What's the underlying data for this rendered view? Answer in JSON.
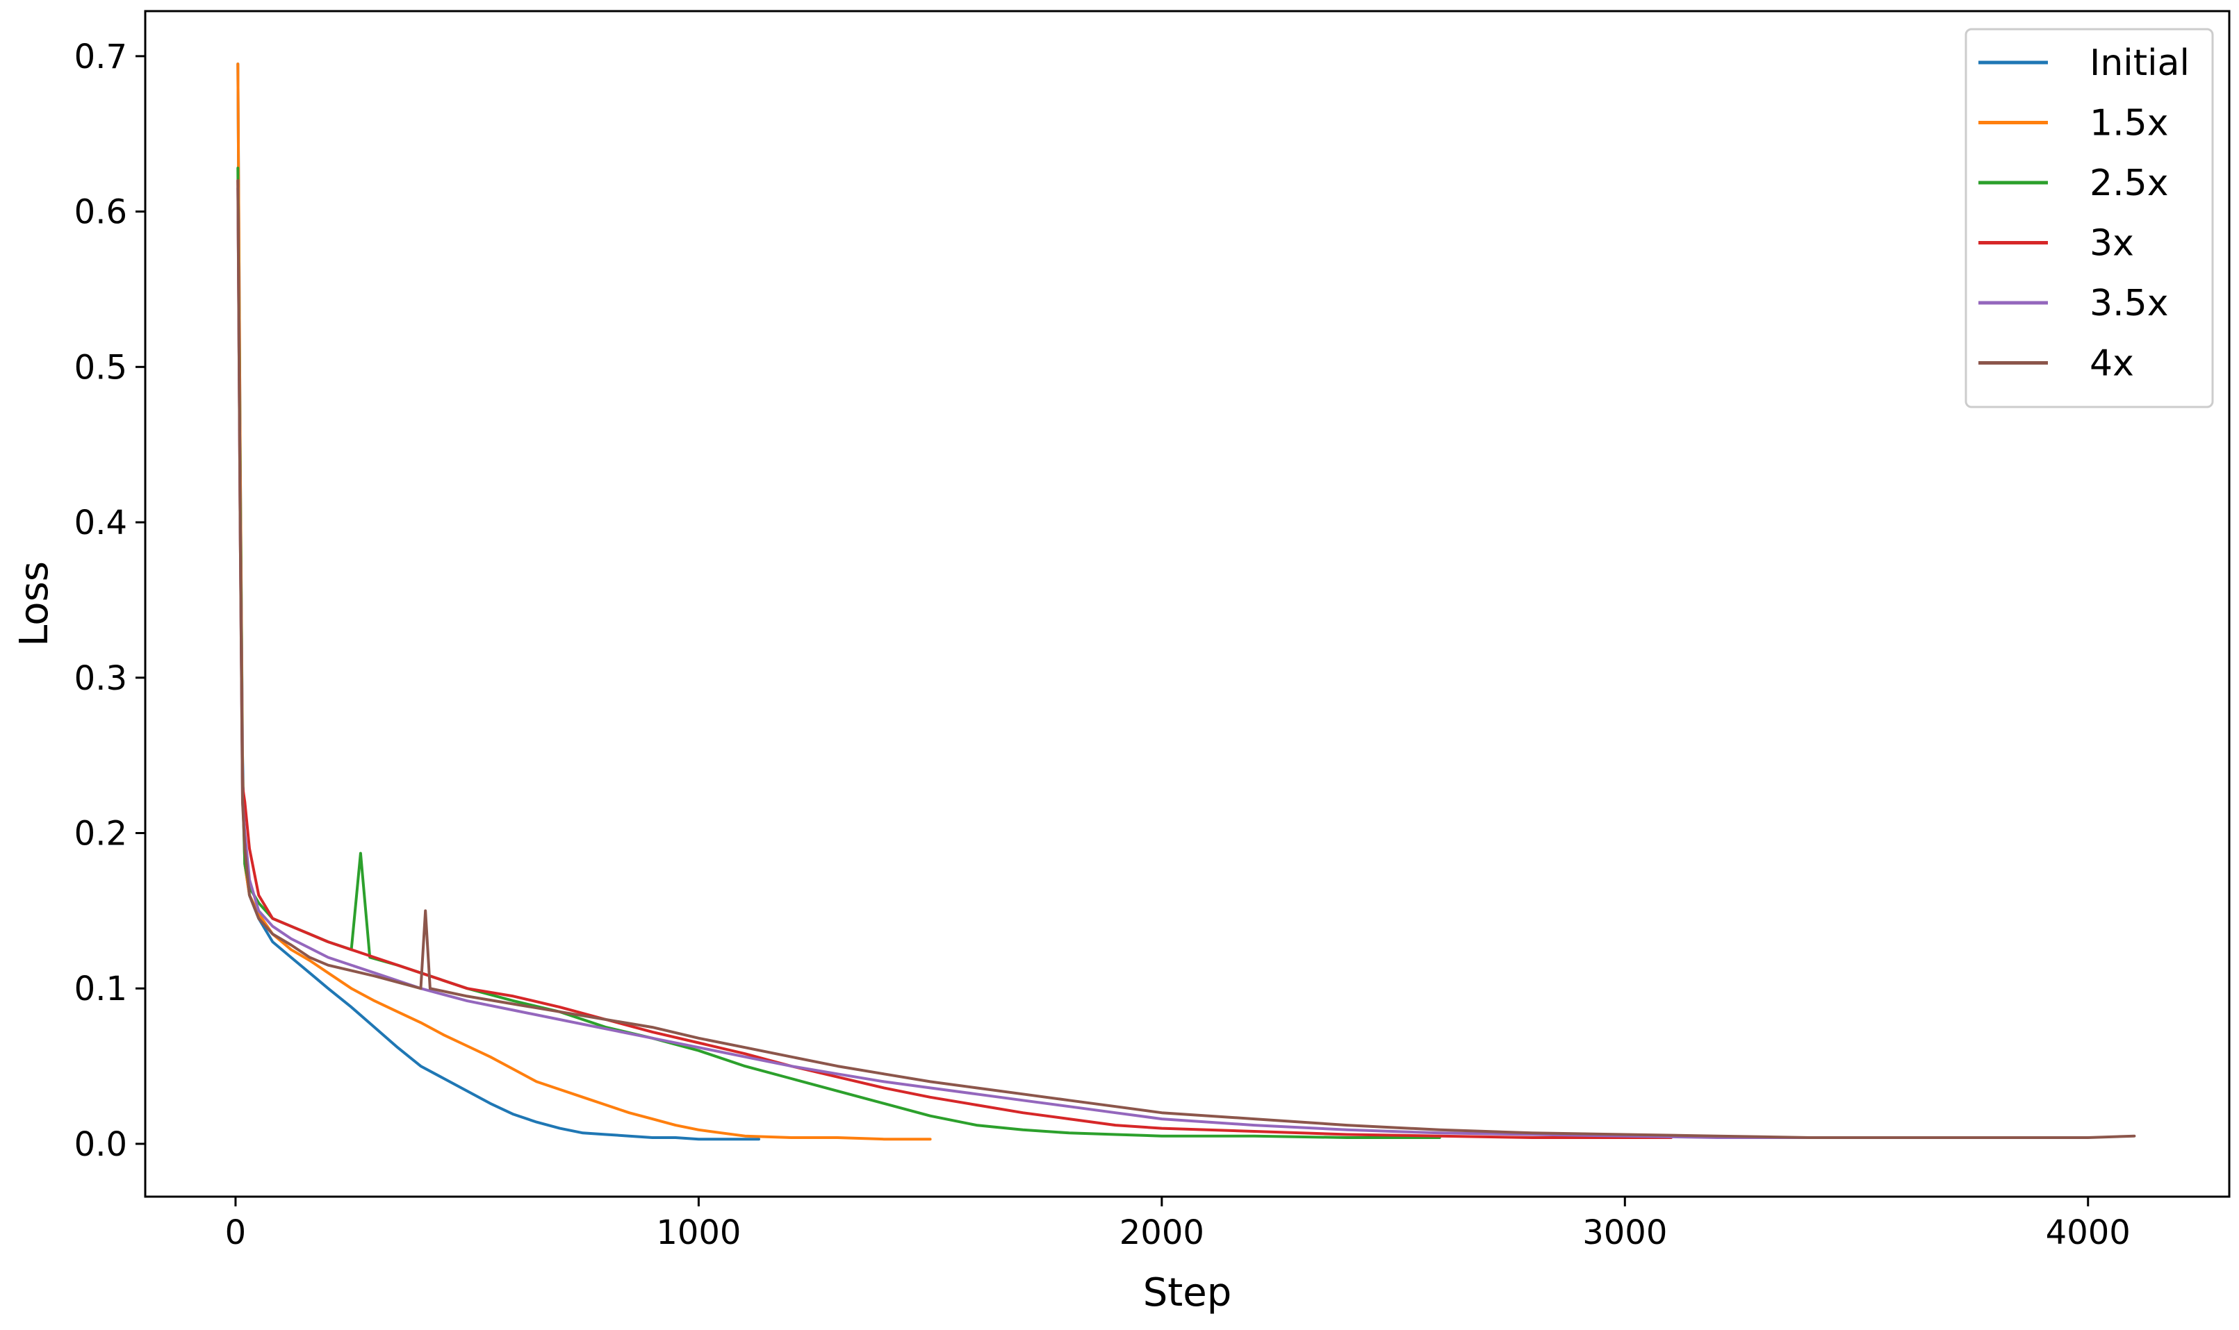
{
  "chart_data": {
    "type": "line",
    "title": "",
    "xlabel": "Step",
    "ylabel": "Loss",
    "xlim": [
      -195,
      4305
    ],
    "ylim": [
      -0.034,
      0.729
    ],
    "x_ticks": [
      0,
      1000,
      2000,
      3000,
      4000
    ],
    "x_tick_labels": [
      "0",
      "1000",
      "2000",
      "3000",
      "4000"
    ],
    "y_ticks": [
      0.0,
      0.1,
      0.2,
      0.3,
      0.4,
      0.5,
      0.6,
      0.7
    ],
    "y_tick_labels": [
      "0.0",
      "0.1",
      "0.2",
      "0.3",
      "0.4",
      "0.5",
      "0.6",
      "0.7"
    ],
    "grid": false,
    "legend_position": "top-right",
    "series": [
      {
        "name": "Initial",
        "color": "#1f77b4",
        "x": [
          5,
          10,
          15,
          20,
          30,
          50,
          80,
          120,
          160,
          200,
          250,
          300,
          350,
          400,
          450,
          500,
          550,
          600,
          650,
          700,
          750,
          800,
          850,
          900,
          950,
          1000,
          1050,
          1100,
          1130
        ],
        "y": [
          0.695,
          0.45,
          0.25,
          0.18,
          0.16,
          0.145,
          0.13,
          0.12,
          0.11,
          0.1,
          0.088,
          0.075,
          0.062,
          0.05,
          0.042,
          0.034,
          0.026,
          0.019,
          0.014,
          0.01,
          0.007,
          0.006,
          0.005,
          0.004,
          0.004,
          0.003,
          0.003,
          0.003,
          0.003
        ]
      },
      {
        "name": "1.5x",
        "color": "#ff7f0e",
        "x": [
          5,
          10,
          15,
          20,
          30,
          50,
          80,
          120,
          160,
          200,
          250,
          300,
          350,
          400,
          450,
          500,
          550,
          600,
          650,
          700,
          750,
          800,
          850,
          900,
          950,
          1000,
          1050,
          1100,
          1200,
          1300,
          1400,
          1500
        ],
        "y": [
          0.695,
          0.45,
          0.24,
          0.18,
          0.16,
          0.148,
          0.135,
          0.125,
          0.118,
          0.11,
          0.1,
          0.092,
          0.085,
          0.078,
          0.07,
          0.063,
          0.056,
          0.048,
          0.04,
          0.035,
          0.03,
          0.025,
          0.02,
          0.016,
          0.012,
          0.009,
          0.007,
          0.005,
          0.004,
          0.004,
          0.003,
          0.003
        ]
      },
      {
        "name": "2.5x",
        "color": "#2ca02c",
        "x": [
          5,
          10,
          15,
          20,
          30,
          50,
          80,
          120,
          160,
          200,
          250,
          270,
          290,
          350,
          400,
          500,
          600,
          700,
          800,
          900,
          1000,
          1100,
          1200,
          1300,
          1400,
          1500,
          1600,
          1700,
          1800,
          1900,
          2000,
          2200,
          2400,
          2600
        ],
        "y": [
          0.628,
          0.42,
          0.23,
          0.18,
          0.165,
          0.155,
          0.145,
          0.14,
          0.135,
          0.13,
          0.125,
          0.187,
          0.12,
          0.115,
          0.11,
          0.1,
          0.092,
          0.085,
          0.075,
          0.068,
          0.06,
          0.05,
          0.042,
          0.034,
          0.026,
          0.018,
          0.012,
          0.009,
          0.007,
          0.006,
          0.005,
          0.005,
          0.004,
          0.004
        ]
      },
      {
        "name": "3x",
        "color": "#d62728",
        "x": [
          5,
          10,
          15,
          20,
          30,
          50,
          80,
          120,
          160,
          200,
          300,
          400,
          500,
          600,
          700,
          800,
          900,
          1000,
          1100,
          1200,
          1300,
          1400,
          1500,
          1600,
          1700,
          1800,
          1900,
          2000,
          2200,
          2400,
          2600,
          2800,
          3000,
          3100
        ],
        "y": [
          0.62,
          0.4,
          0.23,
          0.22,
          0.19,
          0.16,
          0.145,
          0.14,
          0.135,
          0.13,
          0.12,
          0.11,
          0.1,
          0.095,
          0.088,
          0.08,
          0.072,
          0.065,
          0.058,
          0.05,
          0.043,
          0.036,
          0.03,
          0.025,
          0.02,
          0.016,
          0.012,
          0.01,
          0.008,
          0.006,
          0.005,
          0.004,
          0.004,
          0.004
        ]
      },
      {
        "name": "3.5x",
        "color": "#9467bd",
        "x": [
          5,
          10,
          15,
          20,
          30,
          50,
          80,
          120,
          160,
          200,
          300,
          400,
          500,
          600,
          700,
          800,
          900,
          1000,
          1100,
          1200,
          1300,
          1400,
          1500,
          1600,
          1700,
          1800,
          1900,
          2000,
          2200,
          2400,
          2600,
          2800,
          3000,
          3200,
          3400,
          3600
        ],
        "y": [
          0.615,
          0.4,
          0.22,
          0.2,
          0.17,
          0.15,
          0.14,
          0.132,
          0.126,
          0.12,
          0.11,
          0.1,
          0.092,
          0.086,
          0.08,
          0.074,
          0.068,
          0.062,
          0.056,
          0.05,
          0.045,
          0.04,
          0.036,
          0.032,
          0.028,
          0.024,
          0.02,
          0.016,
          0.012,
          0.009,
          0.007,
          0.006,
          0.005,
          0.004,
          0.004,
          0.004
        ]
      },
      {
        "name": "4x",
        "color": "#8c564b",
        "x": [
          5,
          10,
          15,
          20,
          30,
          50,
          80,
          120,
          160,
          200,
          300,
          400,
          410,
          420,
          500,
          600,
          700,
          800,
          900,
          1000,
          1100,
          1200,
          1300,
          1400,
          1500,
          1600,
          1700,
          1800,
          1900,
          2000,
          2200,
          2400,
          2600,
          2800,
          3000,
          3200,
          3400,
          3600,
          3800,
          4000,
          4100
        ],
        "y": [
          0.62,
          0.4,
          0.22,
          0.19,
          0.16,
          0.145,
          0.135,
          0.128,
          0.12,
          0.115,
          0.108,
          0.1,
          0.15,
          0.1,
          0.095,
          0.09,
          0.085,
          0.08,
          0.075,
          0.068,
          0.062,
          0.056,
          0.05,
          0.045,
          0.04,
          0.036,
          0.032,
          0.028,
          0.024,
          0.02,
          0.016,
          0.012,
          0.009,
          0.007,
          0.006,
          0.005,
          0.004,
          0.004,
          0.004,
          0.004,
          0.005
        ]
      }
    ]
  }
}
